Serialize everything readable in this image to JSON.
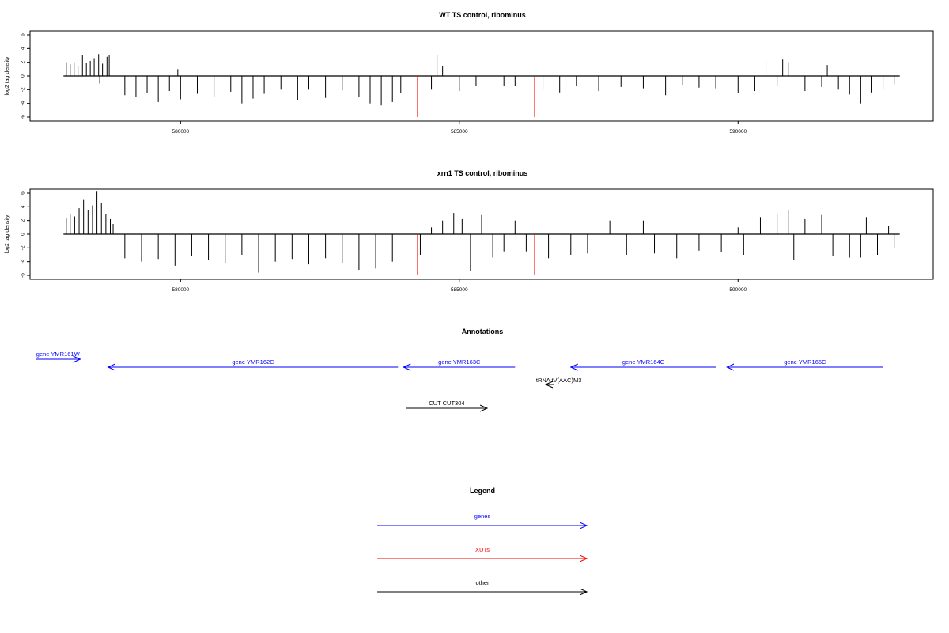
{
  "chart_data": [
    {
      "type": "bar",
      "title": "WT TS control, ribominus",
      "xlabel": "",
      "ylabel": "log2 tag density",
      "xlim": [
        577300,
        593500
      ],
      "ylim": [
        -6,
        6.5
      ],
      "xticks": [
        580000,
        585000,
        590000
      ],
      "xtick_labels": [
        "580000",
        "585000",
        "590000"
      ],
      "yticks": [
        6,
        4,
        2,
        0,
        -2,
        -4,
        -6
      ],
      "ytick_labels": [
        "6",
        "4",
        "2",
        "0",
        "-2",
        "-4",
        "-6"
      ],
      "baseline": {
        "x": [
          577900,
          592900
        ],
        "y": 0
      },
      "series": [
        {
          "color": "#000000",
          "points": [
            [
              577950,
              2.0
            ],
            [
              578020,
              1.7
            ],
            [
              578090,
              2.0
            ],
            [
              578160,
              1.4
            ],
            [
              578240,
              3.0
            ],
            [
              578310,
              1.9
            ],
            [
              578380,
              2.2
            ],
            [
              578450,
              2.6
            ],
            [
              578530,
              3.2
            ],
            [
              578600,
              1.8
            ],
            [
              578680,
              2.8
            ],
            [
              578720,
              3.0
            ],
            [
              578550,
              -1.1
            ],
            [
              579000,
              -2.8
            ],
            [
              579200,
              -3.0
            ],
            [
              579400,
              -2.5
            ],
            [
              579600,
              -3.8
            ],
            [
              579800,
              -2.2
            ],
            [
              579950,
              1.0
            ],
            [
              580000,
              -3.4
            ],
            [
              580300,
              -2.6
            ],
            [
              580600,
              -3.0
            ],
            [
              580900,
              -2.3
            ],
            [
              581100,
              -4.0
            ],
            [
              581300,
              -3.3
            ],
            [
              581500,
              -2.6
            ],
            [
              581800,
              -2.0
            ],
            [
              582100,
              -3.5
            ],
            [
              582300,
              -2.0
            ],
            [
              582600,
              -3.2
            ],
            [
              582900,
              -2.1
            ],
            [
              583200,
              -3.0
            ],
            [
              583400,
              -4.0
            ],
            [
              583600,
              -4.3
            ],
            [
              583800,
              -3.8
            ],
            [
              583950,
              -2.5
            ],
            [
              584500,
              -2.0
            ],
            [
              584600,
              3.0
            ],
            [
              584700,
              1.5
            ],
            [
              585000,
              -2.2
            ],
            [
              585300,
              -1.5
            ],
            [
              585800,
              -1.5
            ],
            [
              586000,
              -1.5
            ],
            [
              586500,
              -2.0
            ],
            [
              586800,
              -2.4
            ],
            [
              587100,
              -1.5
            ],
            [
              587500,
              -2.2
            ],
            [
              587900,
              -1.6
            ],
            [
              588300,
              -1.8
            ],
            [
              588700,
              -2.8
            ],
            [
              589000,
              -1.4
            ],
            [
              589300,
              -1.7
            ],
            [
              589600,
              -1.8
            ],
            [
              590000,
              -2.5
            ],
            [
              590300,
              -2.2
            ],
            [
              590500,
              2.5
            ],
            [
              590800,
              2.4
            ],
            [
              590900,
              2.0
            ],
            [
              590700,
              -1.5
            ],
            [
              591200,
              -2.2
            ],
            [
              591500,
              -1.6
            ],
            [
              591600,
              1.6
            ],
            [
              591800,
              -2.0
            ],
            [
              592000,
              -2.7
            ],
            [
              592200,
              -4.0
            ],
            [
              592400,
              -2.4
            ],
            [
              592600,
              -2.0
            ],
            [
              592800,
              -1.2
            ]
          ]
        },
        {
          "color": "#ff0000",
          "points": [
            [
              584250,
              -6.0
            ],
            [
              586350,
              -6.0
            ]
          ]
        }
      ]
    },
    {
      "type": "bar",
      "title": "xrn1 TS control, ribominus",
      "xlabel": "",
      "ylabel": "log2 tag density",
      "xlim": [
        577300,
        593500
      ],
      "ylim": [
        -6,
        6.5
      ],
      "xticks": [
        580000,
        585000,
        590000
      ],
      "xtick_labels": [
        "580000",
        "585000",
        "590000"
      ],
      "yticks": [
        6,
        4,
        2,
        0,
        -2,
        -4,
        -6
      ],
      "ytick_labels": [
        "6",
        "4",
        "2",
        "0",
        "-2",
        "-4",
        "-6"
      ],
      "baseline": {
        "x": [
          577900,
          592900
        ],
        "y": 0
      },
      "series": [
        {
          "color": "#000000",
          "points": [
            [
              577950,
              2.3
            ],
            [
              578020,
              3.0
            ],
            [
              578100,
              2.6
            ],
            [
              578180,
              3.8
            ],
            [
              578260,
              5.0
            ],
            [
              578340,
              3.5
            ],
            [
              578420,
              4.2
            ],
            [
              578500,
              6.2
            ],
            [
              578580,
              4.5
            ],
            [
              578660,
              3.0
            ],
            [
              578740,
              2.2
            ],
            [
              578790,
              1.5
            ],
            [
              579000,
              -3.5
            ],
            [
              579300,
              -4.0
            ],
            [
              579600,
              -3.6
            ],
            [
              579900,
              -4.6
            ],
            [
              580200,
              -3.2
            ],
            [
              580500,
              -3.8
            ],
            [
              580800,
              -4.2
            ],
            [
              581100,
              -3.0
            ],
            [
              581400,
              -5.6
            ],
            [
              581700,
              -4.0
            ],
            [
              582000,
              -3.6
            ],
            [
              582300,
              -4.4
            ],
            [
              582600,
              -3.5
            ],
            [
              582900,
              -4.2
            ],
            [
              583200,
              -5.2
            ],
            [
              583500,
              -5.0
            ],
            [
              583800,
              -4.0
            ],
            [
              584300,
              -3.0
            ],
            [
              584500,
              1.0
            ],
            [
              584700,
              2.0
            ],
            [
              584900,
              3.1
            ],
            [
              585050,
              2.2
            ],
            [
              585200,
              -5.4
            ],
            [
              585400,
              2.8
            ],
            [
              585600,
              -3.4
            ],
            [
              585800,
              -2.5
            ],
            [
              586000,
              2.0
            ],
            [
              586200,
              -2.5
            ],
            [
              586600,
              -3.5
            ],
            [
              587000,
              -3.0
            ],
            [
              587300,
              -2.8
            ],
            [
              587700,
              2.0
            ],
            [
              588000,
              -3.0
            ],
            [
              588300,
              2.0
            ],
            [
              588500,
              -2.8
            ],
            [
              588900,
              -3.5
            ],
            [
              589300,
              -2.4
            ],
            [
              589700,
              -2.6
            ],
            [
              590000,
              1.0
            ],
            [
              590100,
              -3.0
            ],
            [
              590400,
              2.5
            ],
            [
              590700,
              3.0
            ],
            [
              590900,
              3.5
            ],
            [
              591200,
              2.2
            ],
            [
              591500,
              2.8
            ],
            [
              591000,
              -3.8
            ],
            [
              591700,
              -3.2
            ],
            [
              592000,
              -3.4
            ],
            [
              592300,
              2.5
            ],
            [
              592200,
              -3.4
            ],
            [
              592500,
              -3.0
            ],
            [
              592700,
              1.2
            ],
            [
              592800,
              -2.0
            ]
          ]
        },
        {
          "color": "#ff0000",
          "points": [
            [
              584250,
              -6.0
            ],
            [
              586350,
              -6.0
            ]
          ]
        }
      ]
    }
  ],
  "annotations": {
    "title": "Annotations",
    "items": [
      {
        "label": "gene YMR161W",
        "color": "#0000ff",
        "x0": 577400,
        "x1": 578200
      },
      {
        "label": "gene YMR162C",
        "color": "#0000ff",
        "x0": 583900,
        "x1": 578700
      },
      {
        "label": "gene YMR163C",
        "color": "#0000ff",
        "x0": 586000,
        "x1": 584000
      },
      {
        "label": "gene YMR164C",
        "color": "#0000ff",
        "x0": 589600,
        "x1": 587000
      },
      {
        "label": "gene YMR165C",
        "color": "#0000ff",
        "x0": 592600,
        "x1": 589800
      },
      {
        "label": "tRNA tV(AAC)M3",
        "color": "#000000",
        "x0": 586700,
        "x1": 586550
      },
      {
        "label": "CUT CUT304",
        "color": "#000000",
        "x0": 584050,
        "x1": 585500
      }
    ]
  },
  "legend": {
    "title": "Legend",
    "items": [
      {
        "label": "genes",
        "color": "#0000ff"
      },
      {
        "label": "XUTs",
        "color": "#ff0000"
      },
      {
        "label": "other",
        "color": "#000000"
      }
    ]
  }
}
